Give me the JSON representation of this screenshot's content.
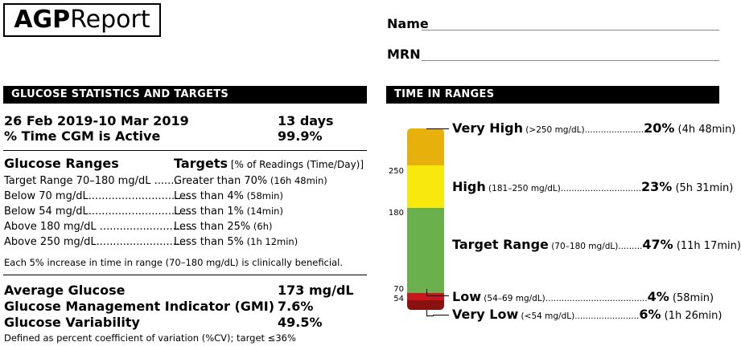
{
  "header": {
    "title_bold": "AGP",
    "title_rest": " Report",
    "name_label": "Name",
    "mrn_label": "MRN"
  },
  "stats": {
    "section_title": "GLUCOSE STATISTICS AND TARGETS",
    "date_range": "26 Feb 2019-10 Mar 2019",
    "days": "13 days",
    "cgm_active_label": "% Time CGM is Active",
    "cgm_active_value": "99.9%",
    "ranges_header": "Glucose Ranges",
    "targets_header": "Targets",
    "targets_subheader": " [% of Readings (Time/Day)]",
    "rows": [
      {
        "range": "Target Range 70–180 mg/dL",
        "dots": " .......",
        "target": "Greater than 70%",
        "time": " (16h 48min)"
      },
      {
        "range": "Below 70 mg/dL",
        "dots": "...............................",
        "target": "Less than 4%",
        "time": " (58min)"
      },
      {
        "range": "Below 54 mg/dL",
        "dots": "...............................",
        "target": "Less than 1%",
        "time": " (14min)"
      },
      {
        "range": "Above 180 mg/dL",
        "dots": " ............................",
        "target": "Less than 25%",
        "time": " (6h)"
      },
      {
        "range": "Above 250 mg/dL",
        "dots": "............................",
        "target": "Less than 5%",
        "time": " (1h 12min)"
      }
    ],
    "increase_note": "Each 5% increase in time in range (70–180 mg/dL) is clinically beneficial.",
    "avg_glucose_label": "Average Glucose",
    "avg_glucose_value": "173 mg/dL",
    "gmi_label": "Glucose Management Indicator (GMI)",
    "gmi_value": "7.6%",
    "variability_label": "Glucose Variability",
    "variability_value": "49.5%",
    "variability_note": "Defined as percent coefficient of variation (%CV); target ≤36%"
  },
  "tir": {
    "section_title": "TIME IN RANGES",
    "axis_labels": [
      "250",
      "180",
      "70",
      "54"
    ],
    "colors": {
      "very_high": "#e8b00a",
      "high": "#f8e80c",
      "target": "#6ab04c",
      "low": "#c8171e",
      "very_low": "#8b1010"
    },
    "ranges": [
      {
        "name": "Very High",
        "desc": " (>250 mg/dL)",
        "dots": "......................",
        "pct": "20%",
        "time": " (4h 48min)"
      },
      {
        "name": "High",
        "desc": " (181–250 mg/dL)",
        "dots": "..............................",
        "pct": "23%",
        "time": " (5h 31min)"
      },
      {
        "name": "Target Range",
        "desc": " (70–180 mg/dL)",
        "dots": ".........",
        "pct": "47%",
        "time": " (11h 17min)"
      },
      {
        "name": "Low",
        "desc": " (54–69 mg/dL)",
        "dots": "......................................",
        "pct": "4%",
        "time": " (58min)"
      },
      {
        "name": "Very Low",
        "desc": " (<54 mg/dL)",
        "dots": "........................",
        "pct": "6%",
        "time": " (1h 26min)"
      }
    ]
  }
}
